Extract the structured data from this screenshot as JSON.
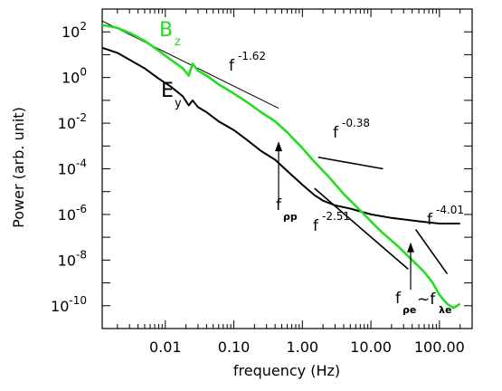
{
  "chart_data": {
    "type": "line",
    "xlabel": "frequency (Hz)",
    "ylabel": "Power (arb. unit)",
    "x_scale": "log",
    "y_scale": "log",
    "xlim": [
      0.0012,
      300
    ],
    "ylim": [
      1e-11,
      1000
    ],
    "x_ticks": [
      {
        "value": 0.01,
        "label": "0.01"
      },
      {
        "value": 0.1,
        "label": "0.10"
      },
      {
        "value": 1,
        "label": "1.00"
      },
      {
        "value": 10,
        "label": "10.00"
      },
      {
        "value": 100,
        "label": "100.00"
      }
    ],
    "y_ticks": [
      {
        "value": 100,
        "base": "10",
        "exp": "2"
      },
      {
        "value": 1,
        "base": "10",
        "exp": "0"
      },
      {
        "value": 0.01,
        "base": "10",
        "exp": "-2"
      },
      {
        "value": 0.0001,
        "base": "10",
        "exp": "-4"
      },
      {
        "value": 1e-06,
        "base": "10",
        "exp": "-6"
      },
      {
        "value": 1e-08,
        "base": "10",
        "exp": "-8"
      },
      {
        "value": 1e-10,
        "base": "10",
        "exp": "-10"
      }
    ],
    "grid": false,
    "series": [
      {
        "name": "B",
        "name_sub": "z",
        "color": "#22dd22",
        "x": [
          0.0012,
          0.002,
          0.003,
          0.005,
          0.008,
          0.012,
          0.018,
          0.022,
          0.025,
          0.03,
          0.04,
          0.06,
          0.1,
          0.15,
          0.25,
          0.4,
          0.6,
          1.0,
          1.5,
          2.5,
          4,
          7,
          10,
          15,
          25,
          40,
          60,
          80,
          100,
          130,
          160,
          200
        ],
        "y": [
          200,
          150,
          90,
          40,
          15,
          6,
          2.5,
          1.2,
          4,
          2,
          1.2,
          0.5,
          0.2,
          0.09,
          0.03,
          0.012,
          0.004,
          0.0008,
          0.0002,
          4e-05,
          8e-06,
          1.5e-06,
          5e-07,
          1.5e-07,
          4e-08,
          1e-08,
          3e-09,
          1e-09,
          3e-10,
          1.2e-10,
          8e-11,
          1.2e-10
        ]
      },
      {
        "name": "E",
        "name_sub": "y",
        "color": "#000000",
        "x": [
          0.0012,
          0.002,
          0.003,
          0.005,
          0.008,
          0.012,
          0.018,
          0.022,
          0.025,
          0.03,
          0.04,
          0.06,
          0.1,
          0.15,
          0.25,
          0.4,
          0.6,
          1.0,
          1.5,
          2.0,
          3,
          5,
          10,
          20,
          50,
          100,
          200
        ],
        "y": [
          20,
          12,
          6,
          2.5,
          0.9,
          0.4,
          0.15,
          0.06,
          0.1,
          0.05,
          0.03,
          0.012,
          0.005,
          0.002,
          0.0006,
          0.00025,
          8e-05,
          2e-05,
          7e-06,
          4e-06,
          2.5e-06,
          1.8e-06,
          1e-06,
          7e-07,
          5e-07,
          4e-07,
          4e-07
        ]
      }
    ],
    "fit_lines": [
      {
        "label": "f",
        "exponent": "-1.62",
        "x": [
          0.0012,
          0.45
        ],
        "y": [
          300,
          0.045
        ]
      },
      {
        "label": "f",
        "exponent": "-0.38",
        "x": [
          1.7,
          15
        ],
        "y": [
          0.00032,
          0.0001
        ]
      },
      {
        "label": "f",
        "exponent": "-2.51",
        "x": [
          1.5,
          35
        ],
        "y": [
          1.4e-05,
          4e-09
        ]
      },
      {
        "label": "f",
        "exponent": "-4.01",
        "x": [
          45,
          130
        ],
        "y": [
          2.2e-07,
          2.5e-09
        ]
      }
    ],
    "annotations": [
      {
        "text": "f",
        "sub": "ρp",
        "arrow_x": 0.45,
        "arrow_from_y": 3e-06,
        "arrow_to_y": 0.0016
      },
      {
        "text": "f",
        "sub": "ρe",
        "arrow_x": 38,
        "arrow_from_y": 5e-10,
        "arrow_to_y": 6e-08
      },
      {
        "text": "~f",
        "sub": "λe"
      }
    ]
  }
}
